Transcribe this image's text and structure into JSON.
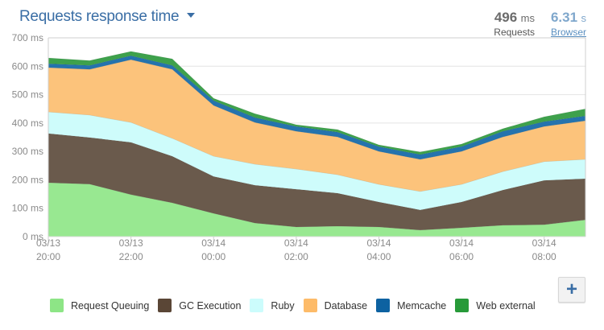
{
  "header": {
    "title": "Requests response time",
    "requests_value": "496",
    "requests_unit": "ms",
    "requests_label": "Requests",
    "browser_value": "6.31",
    "browser_unit": "s",
    "browser_label": "Browser"
  },
  "controls": {
    "add_label": "+"
  },
  "chart_data": {
    "type": "area",
    "stacked": true,
    "title": "Requests response time",
    "xlabel": "",
    "ylabel": "",
    "ylim": [
      0,
      700
    ],
    "y_ticks": [
      "0 ms",
      "100 ms",
      "200 ms",
      "300 ms",
      "400 ms",
      "500 ms",
      "600 ms",
      "700 ms"
    ],
    "y_tick_values": [
      0,
      100,
      200,
      300,
      400,
      500,
      600,
      700
    ],
    "x": [
      "03/13 20:00",
      "03/13 21:00",
      "03/13 22:00",
      "03/13 23:00",
      "03/14 00:00",
      "03/14 01:00",
      "03/14 02:00",
      "03/14 03:00",
      "03/14 04:00",
      "03/14 05:00",
      "03/14 06:00",
      "03/14 07:00",
      "03/14 08:00",
      "03/14 09:00"
    ],
    "x_ticks": [
      {
        "index": 0,
        "line1": "03/13",
        "line2": "20:00"
      },
      {
        "index": 2,
        "line1": "03/13",
        "line2": "22:00"
      },
      {
        "index": 4,
        "line1": "03/14",
        "line2": "00:00"
      },
      {
        "index": 6,
        "line1": "03/14",
        "line2": "02:00"
      },
      {
        "index": 8,
        "line1": "03/14",
        "line2": "04:00"
      },
      {
        "index": 10,
        "line1": "03/14",
        "line2": "06:00"
      },
      {
        "index": 12,
        "line1": "03/14",
        "line2": "08:00"
      }
    ],
    "grid": true,
    "legend_position": "bottom",
    "series": [
      {
        "name": "Request Queuing",
        "color": "#98e891",
        "legend_color": "#8de586",
        "values": [
          190,
          185,
          148,
          119,
          82,
          48,
          34,
          37,
          34,
          23,
          31,
          40,
          42,
          59
        ]
      },
      {
        "name": "GC Execution",
        "color": "#6a5a4c",
        "legend_color": "#5a4636",
        "values": [
          173,
          164,
          184,
          164,
          130,
          133,
          133,
          116,
          88,
          71,
          91,
          124,
          156,
          145
        ]
      },
      {
        "name": "Ruby",
        "color": "#cefcfb",
        "legend_color": "#ccfcfc",
        "values": [
          76,
          79,
          70,
          63,
          71,
          74,
          71,
          65,
          62,
          65,
          62,
          65,
          66,
          68
        ]
      },
      {
        "name": "Database",
        "color": "#fcc37b",
        "legend_color": "#fdbb69",
        "values": [
          156,
          161,
          221,
          243,
          179,
          147,
          133,
          133,
          116,
          113,
          116,
          122,
          124,
          136
        ]
      },
      {
        "name": "Memcache",
        "color": "#2573ad",
        "legend_color": "#0d62a1",
        "values": [
          14,
          14,
          14,
          14,
          17,
          17,
          17,
          17,
          17,
          17,
          17,
          20,
          17,
          17
        ]
      },
      {
        "name": "Web external",
        "color": "#3ea14c",
        "legend_color": "#279a39",
        "values": [
          20,
          17,
          15,
          23,
          8,
          14,
          6,
          9,
          6,
          9,
          9,
          9,
          17,
          25
        ]
      }
    ]
  }
}
